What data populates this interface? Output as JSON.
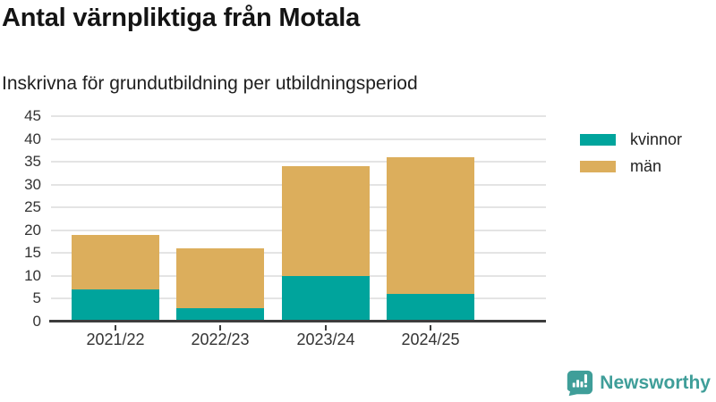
{
  "chart_data": {
    "type": "bar",
    "stacked": true,
    "title": "Antal värnpliktiga från Motala",
    "subtitle": "Inskrivna för grundutbildning per utbildningsperiod",
    "categories": [
      "2021/22",
      "2022/23",
      "2023/24",
      "2024/25"
    ],
    "series": [
      {
        "name": "kvinnor",
        "color": "#00a49c",
        "values": [
          7,
          3,
          10,
          6
        ]
      },
      {
        "name": "män",
        "color": "#dcae5c",
        "values": [
          12,
          13,
          24,
          30
        ]
      }
    ],
    "totals": [
      19,
      16,
      34,
      36
    ],
    "ylim": [
      0,
      45
    ],
    "ytick_step": 5,
    "grid": true,
    "legend_position": "right"
  },
  "legend": {
    "items": [
      {
        "label": "kvinnor",
        "color": "#00a49c"
      },
      {
        "label": "män",
        "color": "#dcae5c"
      }
    ]
  },
  "footer": {
    "brand": "Newsworthy",
    "brand_color": "#3f9e99",
    "icon": "newsworthy-bar-chart-bubble"
  }
}
